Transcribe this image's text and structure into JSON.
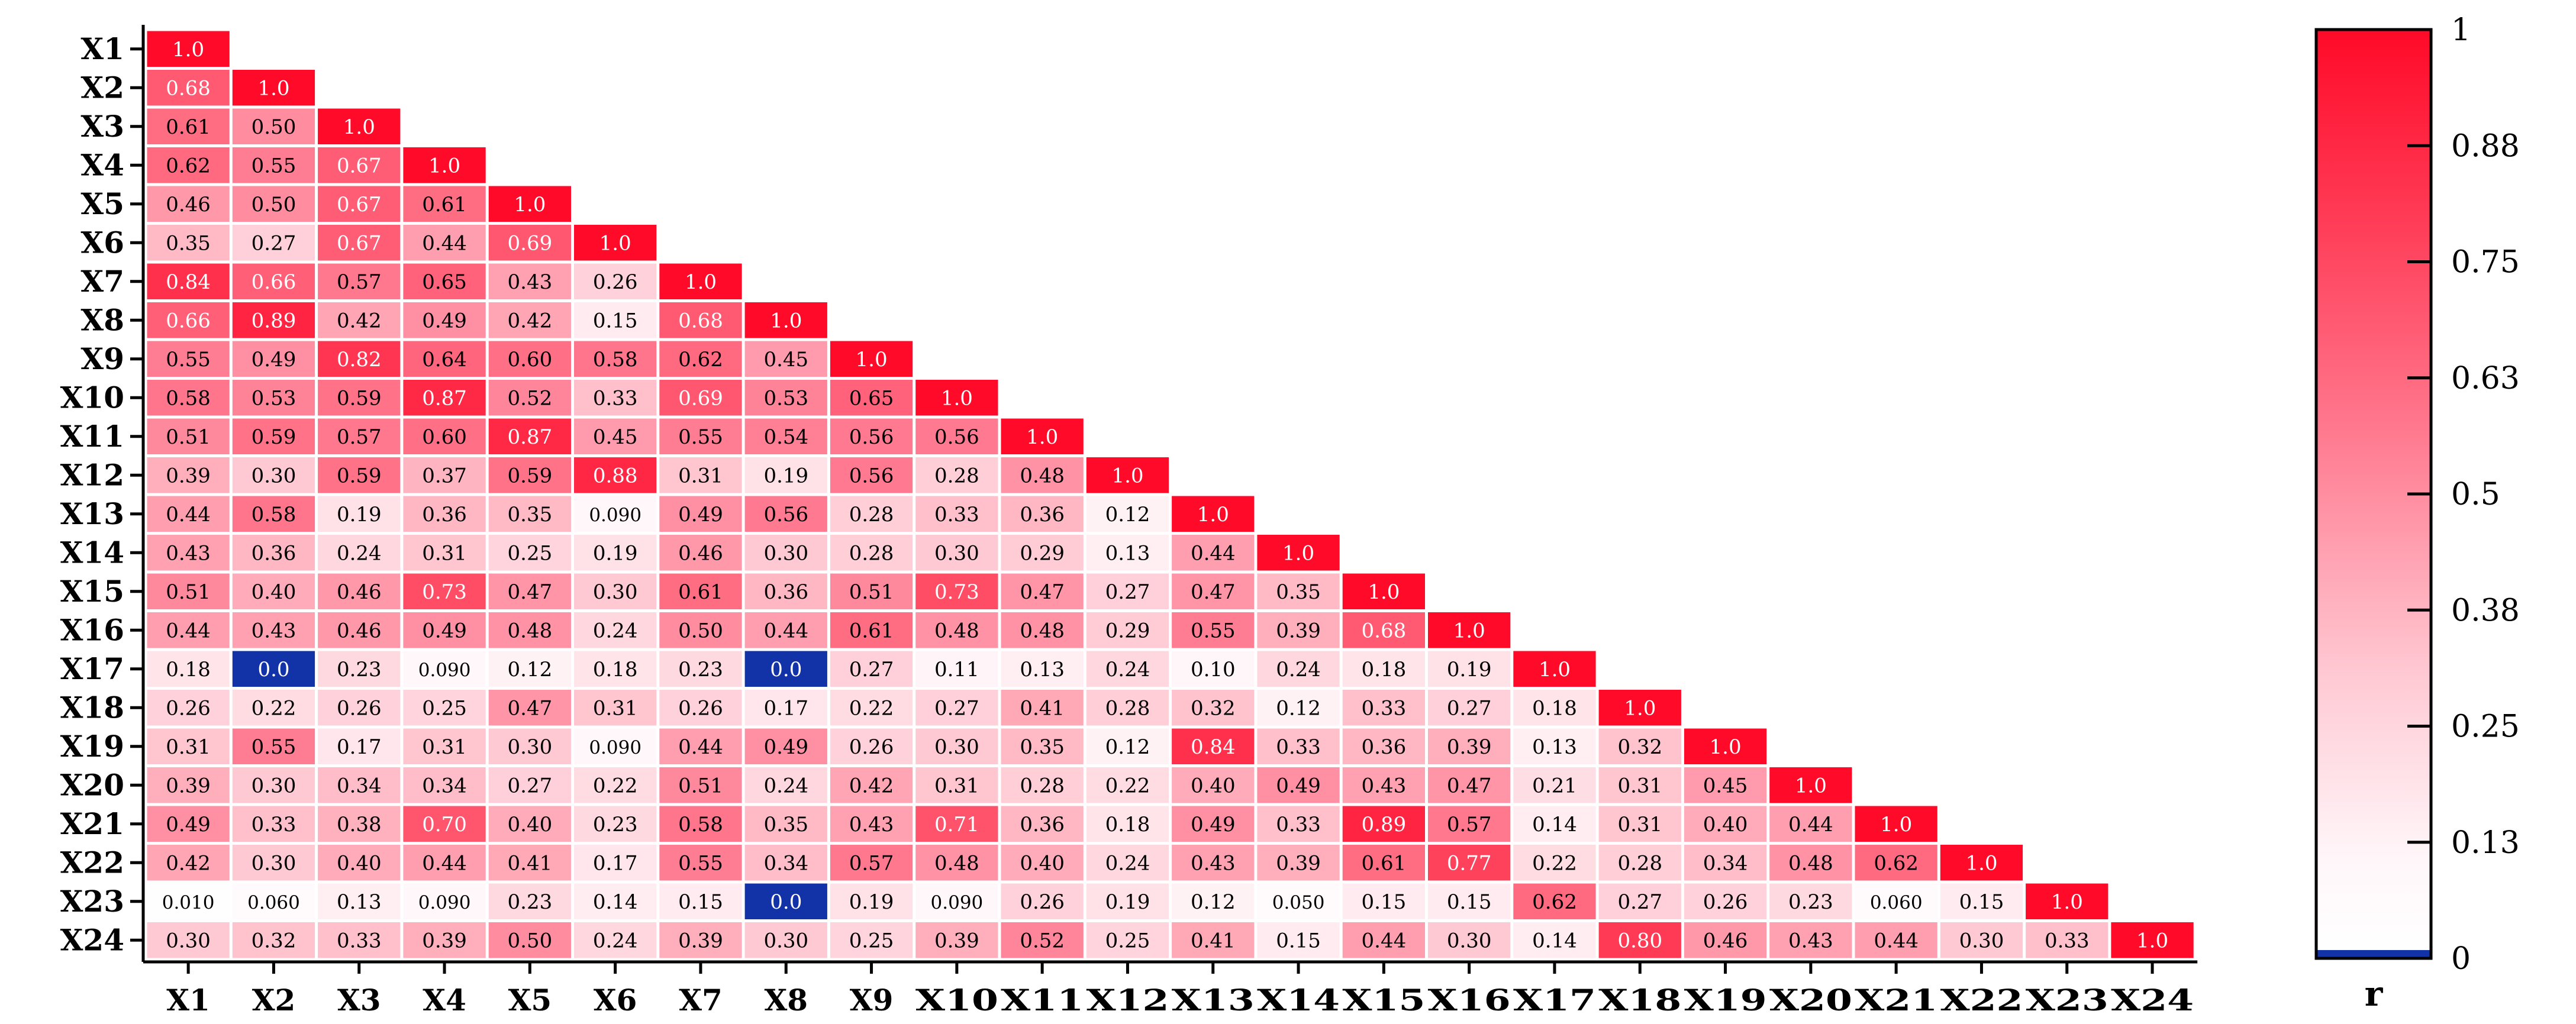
{
  "chart_data": {
    "type": "heatmap",
    "title": "",
    "xlabel": "",
    "ylabel": "",
    "triangle": "lower",
    "labels": [
      "X1",
      "X2",
      "X3",
      "X4",
      "X5",
      "X6",
      "X7",
      "X8",
      "X9",
      "X10",
      "X11",
      "X12",
      "X13",
      "X14",
      "X15",
      "X16",
      "X17",
      "X18",
      "X19",
      "X20",
      "X21",
      "X22",
      "X23",
      "X24"
    ],
    "rows": [
      [
        "1.0"
      ],
      [
        "0.68",
        "1.0"
      ],
      [
        "0.61",
        "0.50",
        "1.0"
      ],
      [
        "0.62",
        "0.55",
        "0.67",
        "1.0"
      ],
      [
        "0.46",
        "0.50",
        "0.67",
        "0.61",
        "1.0"
      ],
      [
        "0.35",
        "0.27",
        "0.67",
        "0.44",
        "0.69",
        "1.0"
      ],
      [
        "0.84",
        "0.66",
        "0.57",
        "0.65",
        "0.43",
        "0.26",
        "1.0"
      ],
      [
        "0.66",
        "0.89",
        "0.42",
        "0.49",
        "0.42",
        "0.15",
        "0.68",
        "1.0"
      ],
      [
        "0.55",
        "0.49",
        "0.82",
        "0.64",
        "0.60",
        "0.58",
        "0.62",
        "0.45",
        "1.0"
      ],
      [
        "0.58",
        "0.53",
        "0.59",
        "0.87",
        "0.52",
        "0.33",
        "0.69",
        "0.53",
        "0.65",
        "1.0"
      ],
      [
        "0.51",
        "0.59",
        "0.57",
        "0.60",
        "0.87",
        "0.45",
        "0.55",
        "0.54",
        "0.56",
        "0.56",
        "1.0"
      ],
      [
        "0.39",
        "0.30",
        "0.59",
        "0.37",
        "0.59",
        "0.88",
        "0.31",
        "0.19",
        "0.56",
        "0.28",
        "0.48",
        "1.0"
      ],
      [
        "0.44",
        "0.58",
        "0.19",
        "0.36",
        "0.35",
        "0.090",
        "0.49",
        "0.56",
        "0.28",
        "0.33",
        "0.36",
        "0.12",
        "1.0"
      ],
      [
        "0.43",
        "0.36",
        "0.24",
        "0.31",
        "0.25",
        "0.19",
        "0.46",
        "0.30",
        "0.28",
        "0.30",
        "0.29",
        "0.13",
        "0.44",
        "1.0"
      ],
      [
        "0.51",
        "0.40",
        "0.46",
        "0.73",
        "0.47",
        "0.30",
        "0.61",
        "0.36",
        "0.51",
        "0.73",
        "0.47",
        "0.27",
        "0.47",
        "0.35",
        "1.0"
      ],
      [
        "0.44",
        "0.43",
        "0.46",
        "0.49",
        "0.48",
        "0.24",
        "0.50",
        "0.44",
        "0.61",
        "0.48",
        "0.48",
        "0.29",
        "0.55",
        "0.39",
        "0.68",
        "1.0"
      ],
      [
        "0.18",
        "0.0",
        "0.23",
        "0.090",
        "0.12",
        "0.18",
        "0.23",
        "0.0",
        "0.27",
        "0.11",
        "0.13",
        "0.24",
        "0.10",
        "0.24",
        "0.18",
        "0.19",
        "1.0"
      ],
      [
        "0.26",
        "0.22",
        "0.26",
        "0.25",
        "0.47",
        "0.31",
        "0.26",
        "0.17",
        "0.22",
        "0.27",
        "0.41",
        "0.28",
        "0.32",
        "0.12",
        "0.33",
        "0.27",
        "0.18",
        "1.0"
      ],
      [
        "0.31",
        "0.55",
        "0.17",
        "0.31",
        "0.30",
        "0.090",
        "0.44",
        "0.49",
        "0.26",
        "0.30",
        "0.35",
        "0.12",
        "0.84",
        "0.33",
        "0.36",
        "0.39",
        "0.13",
        "0.32",
        "1.0"
      ],
      [
        "0.39",
        "0.30",
        "0.34",
        "0.34",
        "0.27",
        "0.22",
        "0.51",
        "0.24",
        "0.42",
        "0.31",
        "0.28",
        "0.22",
        "0.40",
        "0.49",
        "0.43",
        "0.47",
        "0.21",
        "0.31",
        "0.45",
        "1.0"
      ],
      [
        "0.49",
        "0.33",
        "0.38",
        "0.70",
        "0.40",
        "0.23",
        "0.58",
        "0.35",
        "0.43",
        "0.71",
        "0.36",
        "0.18",
        "0.49",
        "0.33",
        "0.89",
        "0.57",
        "0.14",
        "0.31",
        "0.40",
        "0.44",
        "1.0"
      ],
      [
        "0.42",
        "0.30",
        "0.40",
        "0.44",
        "0.41",
        "0.17",
        "0.55",
        "0.34",
        "0.57",
        "0.48",
        "0.40",
        "0.24",
        "0.43",
        "0.39",
        "0.61",
        "0.77",
        "0.22",
        "0.28",
        "0.34",
        "0.48",
        "0.62",
        "1.0"
      ],
      [
        "0.010",
        "0.060",
        "0.13",
        "0.090",
        "0.23",
        "0.14",
        "0.15",
        "0.0",
        "0.19",
        "0.090",
        "0.26",
        "0.19",
        "0.12",
        "0.050",
        "0.15",
        "0.15",
        "0.62",
        "0.27",
        "0.26",
        "0.23",
        "0.060",
        "0.15",
        "1.0"
      ],
      [
        "0.30",
        "0.32",
        "0.33",
        "0.39",
        "0.50",
        "0.24",
        "0.39",
        "0.30",
        "0.25",
        "0.39",
        "0.52",
        "0.25",
        "0.41",
        "0.15",
        "0.44",
        "0.30",
        "0.14",
        "0.80",
        "0.46",
        "0.43",
        "0.44",
        "0.30",
        "0.33",
        "1.0"
      ]
    ],
    "colorbar": {
      "label": "r",
      "ticks": [
        "1",
        "0.88",
        "0.75",
        "0.63",
        "0.5",
        "0.38",
        "0.25",
        "0.13",
        "0"
      ],
      "range": [
        0,
        1
      ],
      "colors": {
        "high": "#ff0a28",
        "low": "#ffffff",
        "zero": "#1232a8"
      }
    }
  }
}
